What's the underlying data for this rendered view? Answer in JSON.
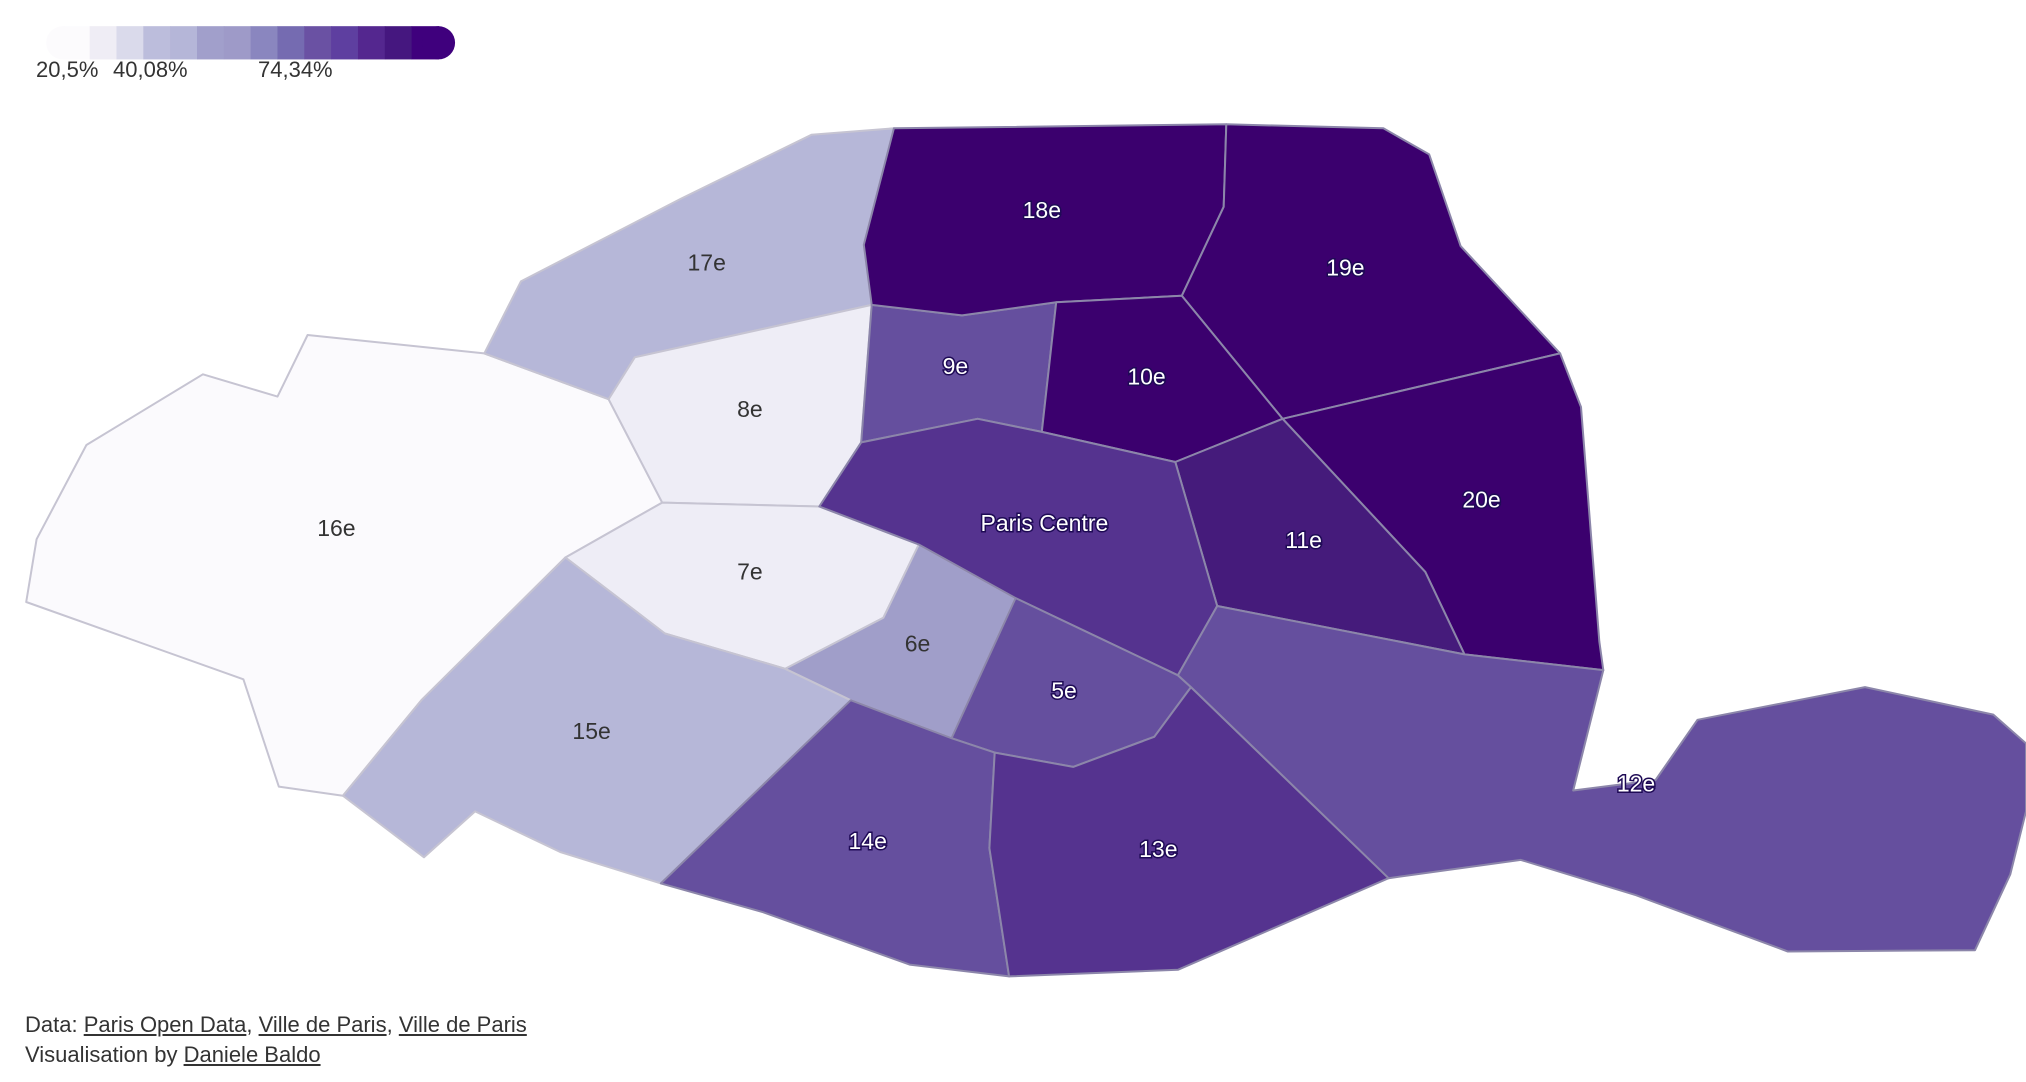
{
  "legend": {
    "colors": [
      "#fcfbfd",
      "#efedf5",
      "#dadaeb",
      "#bcbddc",
      "#b5b6d8",
      "#a19fcb",
      "#9e9ac8",
      "#8a86bf",
      "#756bb1",
      "#6a51a3",
      "#5e3fa0",
      "#54278f",
      "#45177f",
      "#3f007d"
    ],
    "tick_labels": [
      "20,5%",
      "40,08%",
      "74,34%"
    ]
  },
  "map_data": {
    "metric_range": [
      "20,5%",
      "74,34%"
    ],
    "districts": [
      {
        "name": "16e",
        "level": 0,
        "color": "#fbfafd"
      },
      {
        "name": "17e",
        "level": 3,
        "color": "#b6b7d8"
      },
      {
        "name": "8e",
        "level": 1,
        "color": "#eeedf6"
      },
      {
        "name": "7e",
        "level": 1,
        "color": "#eeedf6"
      },
      {
        "name": "15e",
        "level": 3,
        "color": "#b6b7d8"
      },
      {
        "name": "6e",
        "level": 4,
        "color": "#a09ec9"
      },
      {
        "name": "9e",
        "level": 8,
        "color": "#654f9e"
      },
      {
        "name": "18e",
        "level": 13,
        "color": "#3b006e"
      },
      {
        "name": "19e",
        "level": 13,
        "color": "#3b006e"
      },
      {
        "name": "10e",
        "level": 13,
        "color": "#3b006e"
      },
      {
        "name": "20e",
        "level": 13,
        "color": "#3b006e"
      },
      {
        "name": "11e",
        "level": 11,
        "color": "#451b7b"
      },
      {
        "name": "Paris Centre",
        "level": 10,
        "color": "#55338f"
      },
      {
        "name": "5e",
        "level": 8,
        "color": "#654f9e"
      },
      {
        "name": "14e",
        "level": 8,
        "color": "#654f9e"
      },
      {
        "name": "13e",
        "level": 10,
        "color": "#55338f"
      },
      {
        "name": "12e",
        "level": 8,
        "color": "#654f9e"
      }
    ]
  },
  "footer": {
    "data_prefix": "Data: ",
    "sources": [
      "Paris Open Data",
      "Ville de Paris",
      "Ville de Paris"
    ],
    "credit_prefix": "Visualisation by ",
    "author": "Daniele Baldo"
  }
}
